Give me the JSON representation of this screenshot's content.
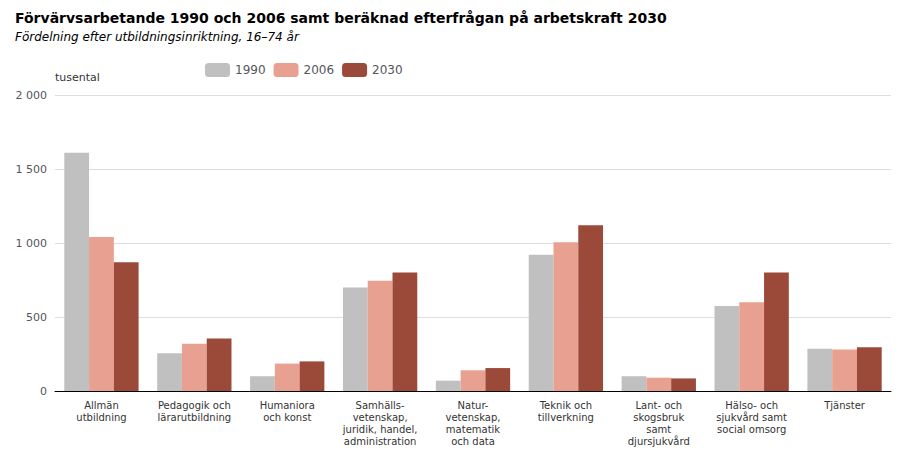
{
  "chart_data": {
    "type": "bar",
    "title": "Förvärvsarbetande 1990 och 2006 samt beräknad efterfrågan på arbetskraft 2030",
    "subtitle": "Fördelning efter utbildningsinriktning, 16–74 år",
    "ylabel": "tusental",
    "categories": [
      "Allmän\nutbildning",
      "Pedagogik och\nlärarutbildning",
      "Humaniora\noch konst",
      "Samhälls-\nvetenskap,\njuridik, handel,\nadministration",
      "Natur-\nvetenskap,\nmatematik\noch data",
      "Teknik och\ntillverkning",
      "Lant- och\nskogsbruk\nsamt\ndjursjukvård",
      "Hälso- och\nsjukvård samt\nsocial omsorg",
      "Tjänster"
    ],
    "series": [
      {
        "name": "1990",
        "color": "#c0c0c0",
        "values": [
          1610,
          255,
          100,
          700,
          70,
          920,
          100,
          575,
          285
        ]
      },
      {
        "name": "2006",
        "color": "#e8a090",
        "values": [
          1040,
          320,
          185,
          745,
          140,
          1005,
          90,
          600,
          280
        ]
      },
      {
        "name": "2030",
        "color": "#9b4a3a",
        "values": [
          870,
          355,
          200,
          800,
          155,
          1120,
          85,
          800,
          295
        ]
      }
    ],
    "ylim": [
      0,
      2000
    ],
    "yticks": [
      0,
      500,
      {
        "value": 1000,
        "label": "1 000"
      },
      {
        "value": 1500,
        "label": "1 500"
      },
      {
        "value": 2000,
        "label": "2 000"
      }
    ],
    "grid": true,
    "legend": "upper left"
  }
}
